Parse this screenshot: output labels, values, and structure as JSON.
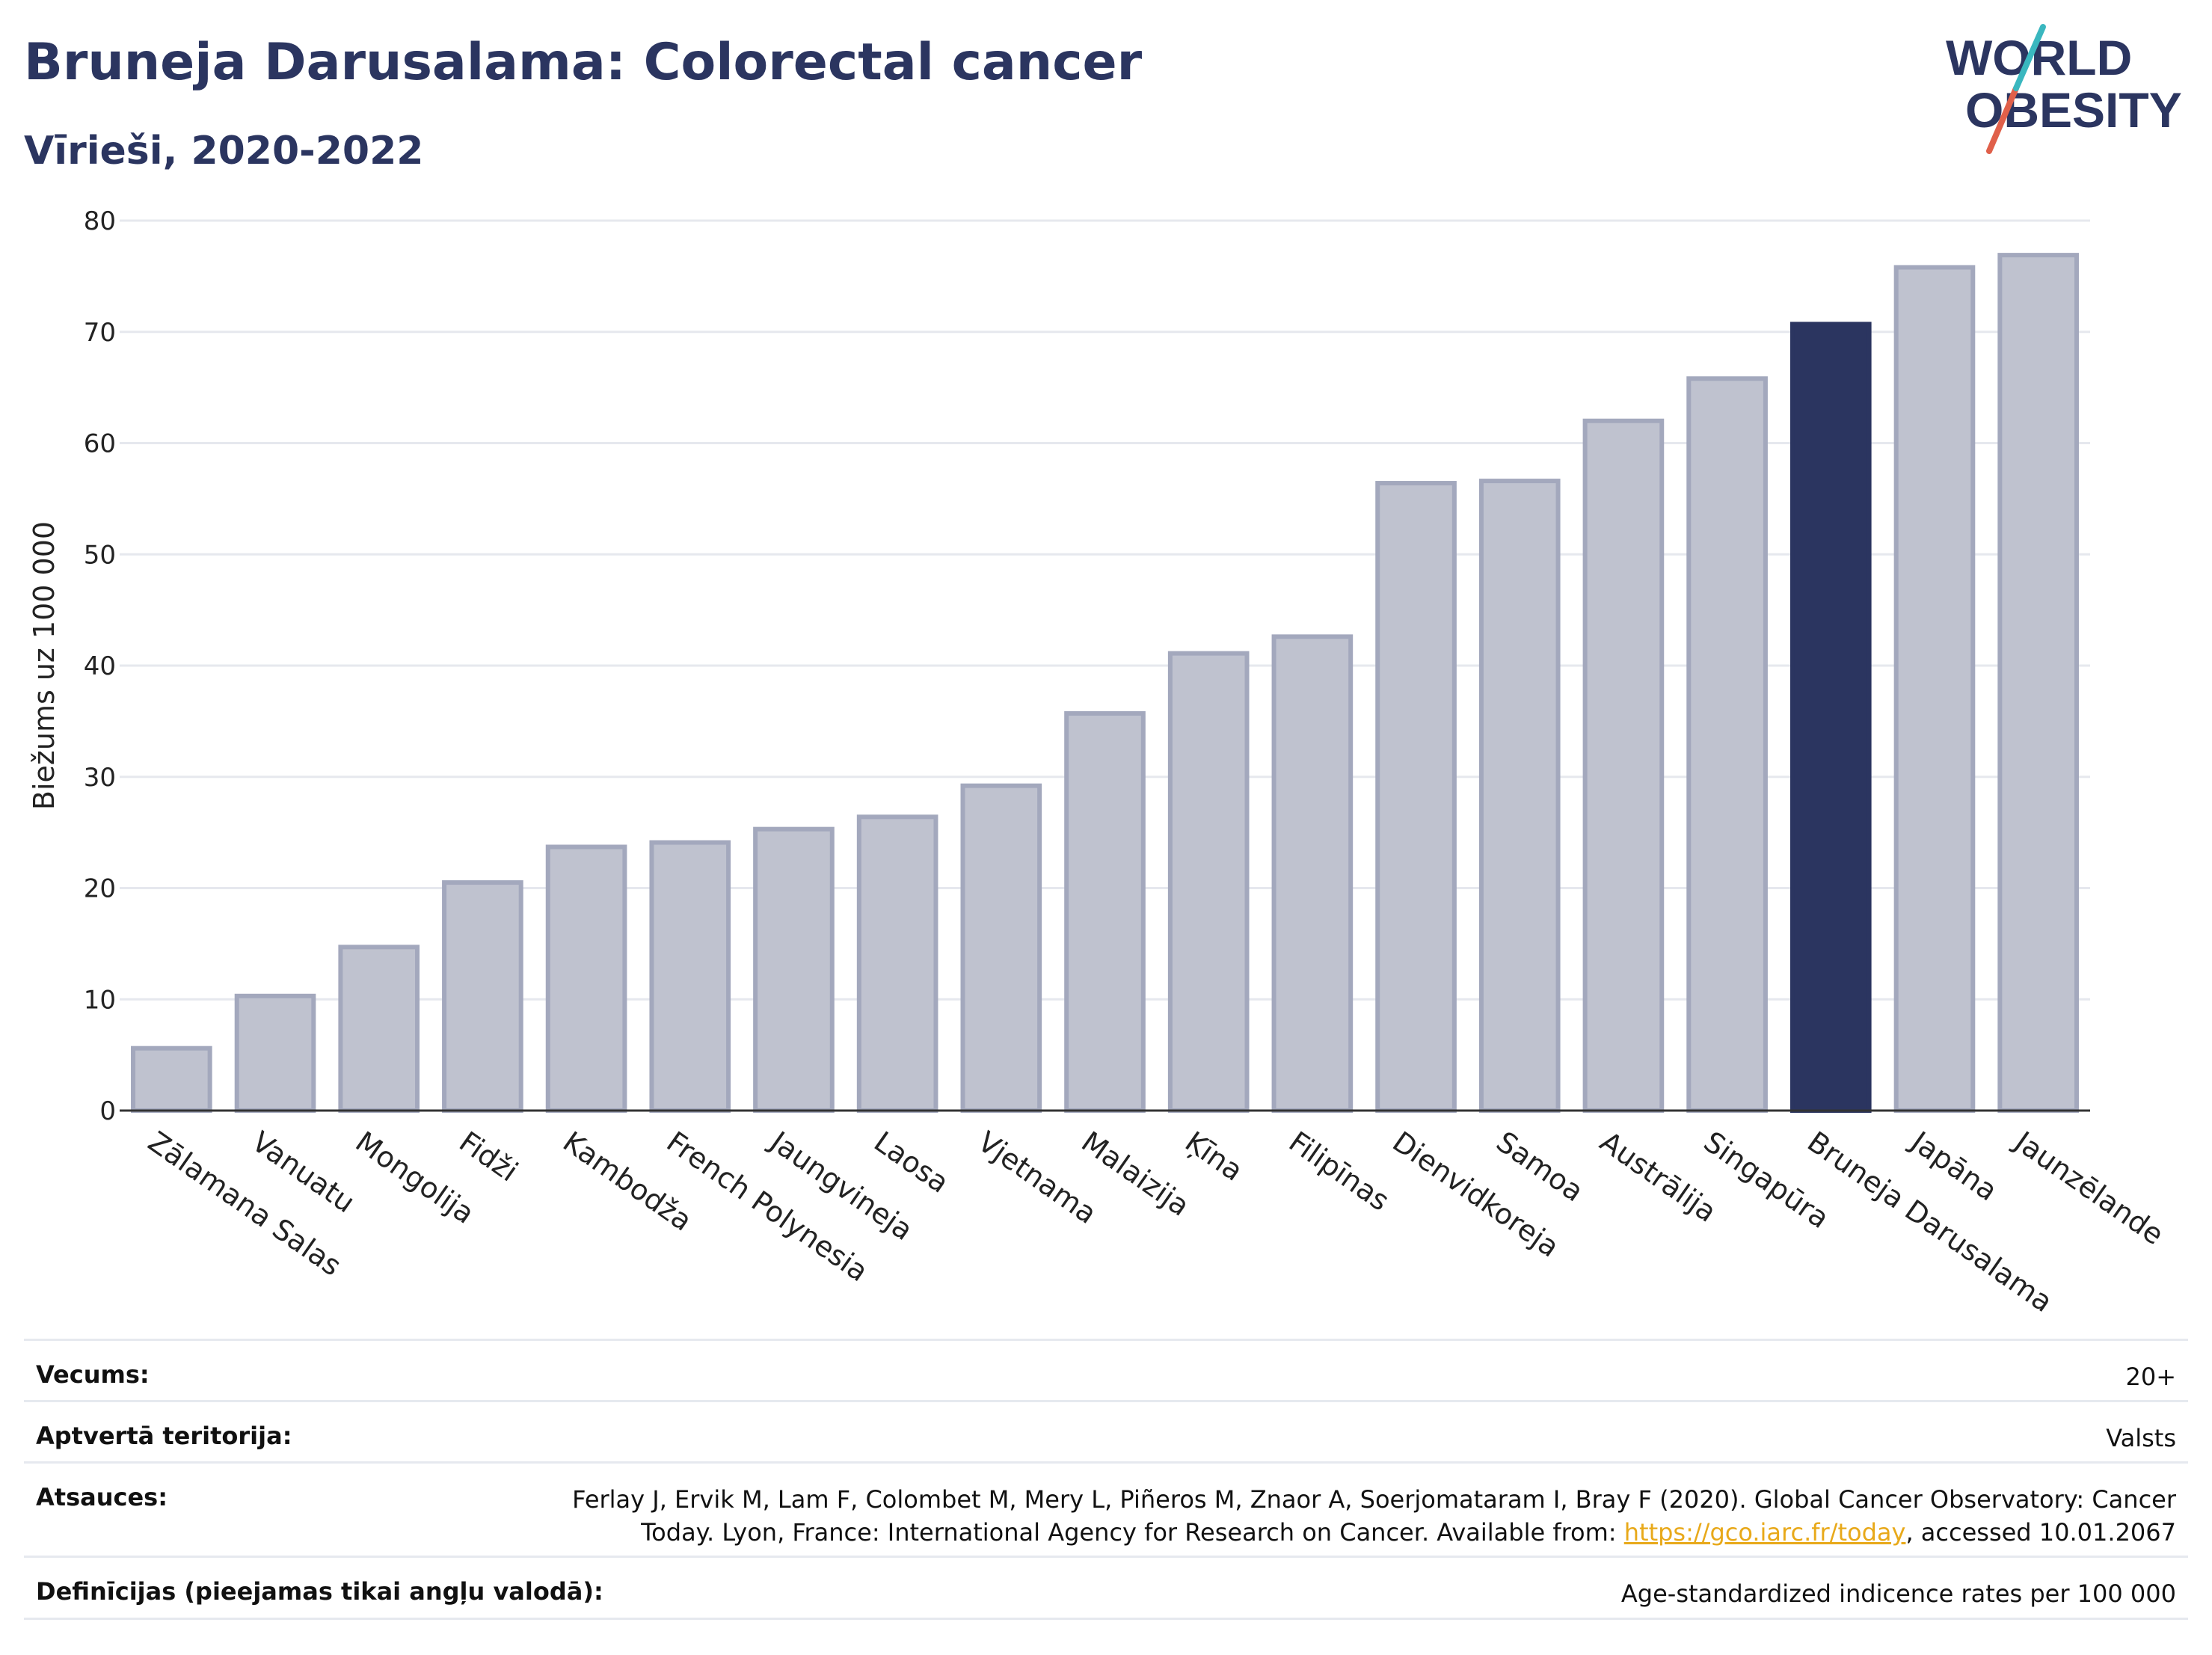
{
  "header": {
    "title": "Bruneja Darusalama: Colorectal cancer",
    "subtitle": "Vīrieši, 2020-2022"
  },
  "logo": {
    "line1": "WORLD",
    "line2": "OBESITY",
    "accent_teal": "#3ab7bf",
    "accent_red": "#e0604a",
    "text_color": "#2b3560"
  },
  "chart_data": {
    "type": "bar",
    "categories": [
      "Zālamana Salas",
      "Vanuatu",
      "Mongolija",
      "Fidži",
      "Kambodža",
      "French Polynesia",
      "Jaungvineja",
      "Laosa",
      "Vjetnama",
      "Malaizija",
      "Ķīna",
      "Filipīnas",
      "Dienvidkoreja",
      "Samoa",
      "Austrālija",
      "Singapūra",
      "Bruneja Darusalama",
      "Japāna",
      "Jaunzēlande"
    ],
    "values": [
      5.6,
      10.3,
      14.7,
      20.5,
      23.7,
      24.1,
      25.3,
      26.4,
      29.2,
      35.7,
      41.1,
      42.6,
      56.4,
      56.6,
      62.0,
      65.8,
      70.7,
      75.8,
      76.9
    ],
    "highlight": "Bruneja Darusalama",
    "ylabel": "Biežums uz 100 000",
    "xlabel": "",
    "ylim": [
      0,
      80
    ],
    "yticks": [
      0,
      10,
      20,
      30,
      40,
      50,
      60,
      70,
      80
    ],
    "grid": true,
    "colors": {
      "bar": "#bfc2cf",
      "bar_border": "#a3a8bd",
      "highlight": "#2b3560",
      "grid": "#e6e8ee"
    }
  },
  "info": {
    "age_label": "Vecums:",
    "age_value": "20+",
    "coverage_label": "Aptvertā teritorija:",
    "coverage_value": "Valsts",
    "refs_label": "Atsauces:",
    "refs_line1": "Ferlay J, Ervik M, Lam F, Colombet M, Mery L, Piñeros M, Znaor A, Soerjomataram I, Bray F (2020). Global Cancer Observatory: Cancer",
    "refs_line2_pre": "Today. Lyon, France: International Agency for Research on Cancer. Available from: ",
    "refs_link": "https://gco.iarc.fr/today",
    "refs_line2_post": ", accessed 10.01.2067",
    "defs_label": "Definīcijas (pieejamas tikai angļu valodā):",
    "defs_value": "Age-standardized indicence rates per 100 000"
  }
}
